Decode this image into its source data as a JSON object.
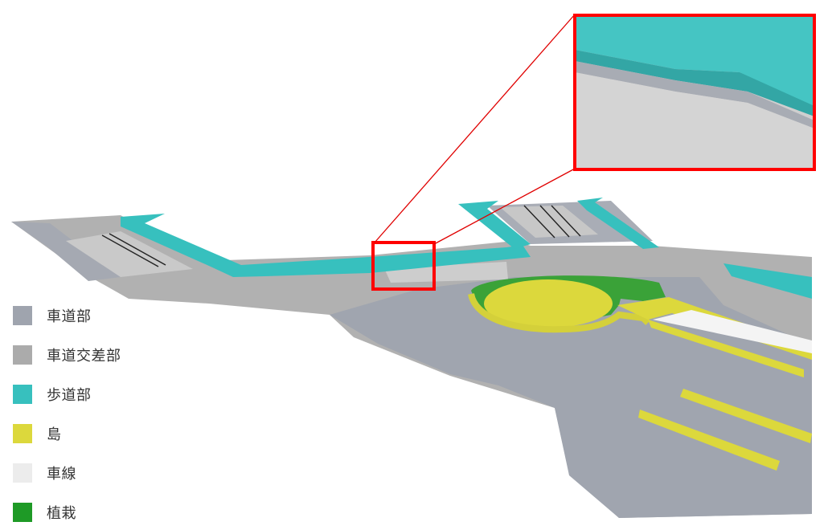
{
  "colors": {
    "roadway": "#9fa4ae",
    "roadway_intersection": "#ababab",
    "sidewalk": "#37c0be",
    "island": "#dcd83c",
    "lane_marking": "#ececec",
    "planting": "#1e9a26",
    "highlight": "#ff0000"
  },
  "legend": {
    "items": [
      {
        "label": "車道部",
        "color": "#9fa4ae",
        "name": "roadway"
      },
      {
        "label": "車道交差部",
        "color": "#ababab",
        "name": "roadway-intersection"
      },
      {
        "label": "歩道部",
        "color": "#37c0be",
        "name": "sidewalk"
      },
      {
        "label": "島",
        "color": "#dcd83c",
        "name": "island"
      },
      {
        "label": "車線",
        "color": "#ececec",
        "name": "lane-marking"
      },
      {
        "label": "植栽",
        "color": "#1e9a26",
        "name": "planting"
      }
    ]
  }
}
